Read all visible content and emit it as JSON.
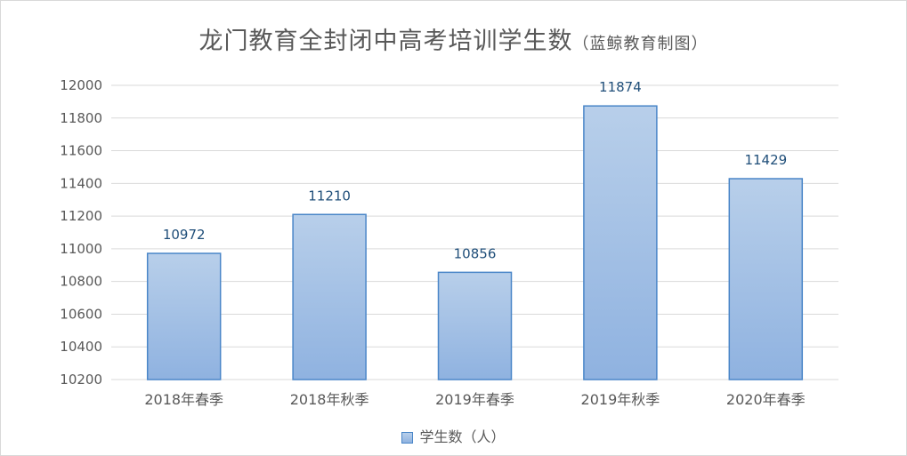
{
  "chart_data": {
    "type": "bar",
    "title": "龙门教育全封闭中高考培训学生数",
    "subtitle": "（蓝鲸教育制图）",
    "categories": [
      "2018年春季",
      "2018年秋季",
      "2019年春季",
      "2019年秋季",
      "2020年春季"
    ],
    "series": [
      {
        "name": "学生数（人）",
        "values": [
          10972,
          11210,
          10856,
          11874,
          11429
        ]
      }
    ],
    "ylim": [
      10200,
      12000
    ],
    "yticks": [
      10200,
      10400,
      10600,
      10800,
      11000,
      11200,
      11400,
      11600,
      11800,
      12000
    ],
    "grid": true,
    "legend_position": "bottom",
    "colors": {
      "bar_fill_top": "#b8cfea",
      "bar_fill_bottom": "#8fb2e0",
      "bar_border": "#4a86c8",
      "label": "#1f4e79",
      "axis_text": "#595959",
      "grid": "#d9d9d9"
    }
  }
}
